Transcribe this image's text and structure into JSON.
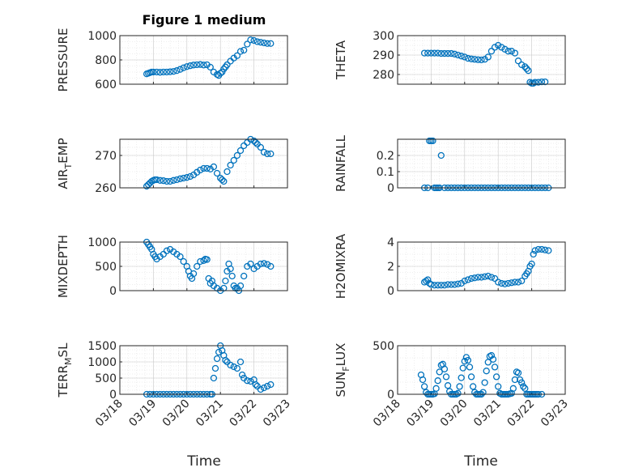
{
  "figure": {
    "title": "Figure 1 medium",
    "xlabel": "Time"
  },
  "x_ticks": [
    "03/18",
    "03/19",
    "03/20",
    "03/21",
    "03/22",
    "03/23"
  ],
  "chart_data": [
    {
      "type": "scatter",
      "name": "pressure",
      "ylabel": "PRESSURE",
      "ylabel_sub": "",
      "ylim": [
        600,
        1000
      ],
      "yticks": [
        "600",
        "800",
        "1000"
      ],
      "yticks_values": [
        600,
        800,
        1000
      ],
      "x": [
        0.8,
        0.85,
        0.9,
        0.95,
        1.0,
        1.1,
        1.2,
        1.3,
        1.4,
        1.5,
        1.6,
        1.7,
        1.8,
        1.9,
        2.0,
        2.1,
        2.2,
        2.3,
        2.4,
        2.5,
        2.6,
        2.7,
        2.8,
        2.9,
        2.95,
        3.0,
        3.05,
        3.1,
        3.15,
        3.2,
        3.3,
        3.4,
        3.5,
        3.6,
        3.7,
        3.8,
        3.9,
        4.0,
        4.1,
        4.2,
        4.3,
        4.4,
        4.5
      ],
      "y": [
        685,
        690,
        695,
        700,
        700,
        700,
        698,
        700,
        700,
        702,
        705,
        712,
        722,
        735,
        745,
        752,
        758,
        760,
        762,
        758,
        760,
        740,
        700,
        680,
        672,
        690,
        700,
        725,
        742,
        760,
        790,
        815,
        835,
        870,
        880,
        930,
        965,
        960,
        950,
        945,
        940,
        935,
        935
      ],
      "color": "#0072bd"
    },
    {
      "type": "scatter",
      "name": "theta",
      "ylabel": "THETA",
      "ylabel_sub": "",
      "ylim": [
        275,
        300
      ],
      "yticks": [
        "280",
        "290",
        "300"
      ],
      "yticks_values": [
        280,
        290,
        300
      ],
      "x": [
        0.8,
        0.9,
        1.0,
        1.1,
        1.2,
        1.3,
        1.4,
        1.5,
        1.6,
        1.7,
        1.8,
        1.9,
        2.0,
        2.1,
        2.2,
        2.3,
        2.4,
        2.5,
        2.6,
        2.7,
        2.8,
        2.9,
        3.0,
        3.1,
        3.2,
        3.3,
        3.4,
        3.5,
        3.6,
        3.7,
        3.8,
        3.85,
        3.9,
        3.95,
        4.0,
        4.05,
        4.1,
        4.2,
        4.3,
        4.4
      ],
      "y": [
        291,
        291,
        291,
        291,
        291,
        290.8,
        290.8,
        290.8,
        290.8,
        290.5,
        290,
        289.5,
        289,
        288.3,
        288,
        287.8,
        287.6,
        287.5,
        287.8,
        289,
        292,
        294,
        295,
        294,
        293,
        292,
        292,
        291,
        287,
        285,
        284,
        283,
        282,
        276,
        275.5,
        275.5,
        276,
        276,
        276.2,
        276.2
      ],
      "color": "#0072bd"
    },
    {
      "type": "scatter",
      "name": "air_temp",
      "ylabel": "AIR",
      "ylabel_sub": "T",
      "ylabel_tail": "EMP",
      "ylim": [
        260,
        275
      ],
      "yticks": [
        "260",
        "270"
      ],
      "yticks_values": [
        260,
        270
      ],
      "x": [
        0.8,
        0.85,
        0.9,
        0.95,
        1.0,
        1.05,
        1.1,
        1.2,
        1.3,
        1.4,
        1.5,
        1.6,
        1.7,
        1.8,
        1.9,
        2.0,
        2.1,
        2.2,
        2.3,
        2.4,
        2.5,
        2.6,
        2.7,
        2.8,
        2.9,
        3.0,
        3.05,
        3.1,
        3.2,
        3.3,
        3.4,
        3.5,
        3.6,
        3.7,
        3.8,
        3.9,
        4.0,
        4.05,
        4.1,
        4.2,
        4.3,
        4.4,
        4.5
      ],
      "y": [
        260.5,
        261,
        261.5,
        262,
        262.3,
        262.5,
        262.5,
        262.3,
        262.2,
        262,
        262,
        262.3,
        262.5,
        262.8,
        263,
        263.2,
        263.5,
        264,
        264.8,
        265.5,
        266,
        266,
        265.8,
        266.5,
        264.5,
        263,
        262.5,
        262,
        265,
        267,
        268.5,
        270,
        271.5,
        273,
        274,
        275,
        274.5,
        274,
        273.5,
        272.5,
        271,
        270.5,
        270.5
      ],
      "color": "#0072bd"
    },
    {
      "type": "scatter",
      "name": "rainfall",
      "ylabel": "RAINFALL",
      "ylabel_sub": "",
      "ylim": [
        0,
        0.3
      ],
      "yticks": [
        "0",
        "0.1",
        "0.2"
      ],
      "yticks_values": [
        0,
        0.1,
        0.2
      ],
      "x": [
        0.8,
        0.9,
        0.95,
        1.0,
        1.05,
        1.1,
        1.15,
        1.2,
        1.25,
        1.3,
        1.4,
        1.5,
        1.6,
        1.7,
        1.8,
        1.9,
        2.0,
        2.1,
        2.2,
        2.3,
        2.4,
        2.5,
        2.6,
        2.7,
        2.8,
        2.9,
        3.0,
        3.1,
        3.2,
        3.3,
        3.4,
        3.5,
        3.6,
        3.7,
        3.8,
        3.9,
        4.0,
        4.1,
        4.2,
        4.3,
        4.4,
        4.5
      ],
      "y": [
        0,
        0,
        0.29,
        0.29,
        0.29,
        0,
        0,
        0,
        0,
        0.2,
        0,
        0,
        0,
        0,
        0,
        0,
        0,
        0,
        0,
        0,
        0,
        0,
        0,
        0,
        0,
        0,
        0,
        0,
        0,
        0,
        0,
        0,
        0,
        0,
        0,
        0,
        0,
        0,
        0,
        0,
        0,
        0
      ],
      "color": "#0072bd"
    },
    {
      "type": "scatter",
      "name": "mixdepth",
      "ylabel": "MIXDEPTH",
      "ylabel_sub": "",
      "ylim": [
        0,
        1000
      ],
      "yticks": [
        "0",
        "500",
        "1000"
      ],
      "yticks_values": [
        0,
        500,
        1000
      ],
      "x": [
        0.8,
        0.85,
        0.9,
        0.95,
        1.0,
        1.05,
        1.1,
        1.2,
        1.3,
        1.4,
        1.5,
        1.6,
        1.7,
        1.8,
        1.9,
        2.0,
        2.05,
        2.1,
        2.15,
        2.2,
        2.3,
        2.4,
        2.5,
        2.55,
        2.6,
        2.65,
        2.7,
        2.75,
        2.8,
        2.9,
        3.0,
        3.1,
        3.15,
        3.2,
        3.25,
        3.3,
        3.35,
        3.4,
        3.45,
        3.5,
        3.55,
        3.6,
        3.7,
        3.8,
        3.9,
        4.0,
        4.1,
        4.2,
        4.3,
        4.4,
        4.5
      ],
      "y": [
        1000,
        950,
        900,
        850,
        750,
        700,
        650,
        700,
        750,
        820,
        850,
        800,
        750,
        700,
        600,
        500,
        400,
        300,
        250,
        350,
        500,
        600,
        620,
        650,
        640,
        250,
        150,
        200,
        100,
        50,
        0,
        50,
        200,
        400,
        550,
        450,
        300,
        100,
        50,
        50,
        0,
        100,
        300,
        500,
        550,
        450,
        500,
        550,
        560,
        540,
        500
      ],
      "color": "#0072bd"
    },
    {
      "type": "scatter",
      "name": "h2omixra",
      "ylabel": "H2OMIXRA",
      "ylabel_sub": "",
      "ylim": [
        0,
        4
      ],
      "yticks": [
        "0",
        "2",
        "4"
      ],
      "yticks_values": [
        0,
        2,
        4
      ],
      "x": [
        0.8,
        0.85,
        0.9,
        0.95,
        1.0,
        1.1,
        1.2,
        1.3,
        1.4,
        1.5,
        1.6,
        1.7,
        1.8,
        1.9,
        2.0,
        2.1,
        2.2,
        2.3,
        2.4,
        2.5,
        2.6,
        2.7,
        2.8,
        2.9,
        3.0,
        3.1,
        3.2,
        3.3,
        3.4,
        3.5,
        3.6,
        3.7,
        3.8,
        3.85,
        3.9,
        3.95,
        4.0,
        4.05,
        4.1,
        4.2,
        4.3,
        4.4,
        4.5
      ],
      "y": [
        0.7,
        0.8,
        0.9,
        0.6,
        0.5,
        0.45,
        0.45,
        0.45,
        0.45,
        0.5,
        0.5,
        0.5,
        0.55,
        0.6,
        0.8,
        0.9,
        1.0,
        1.05,
        1.1,
        1.1,
        1.15,
        1.2,
        1.1,
        1.0,
        0.7,
        0.6,
        0.55,
        0.6,
        0.65,
        0.7,
        0.7,
        0.8,
        1.2,
        1.4,
        1.6,
        2.0,
        2.2,
        3.0,
        3.3,
        3.4,
        3.4,
        3.35,
        3.3
      ],
      "color": "#0072bd"
    },
    {
      "type": "scatter",
      "name": "terr_msl",
      "ylabel": "TERR",
      "ylabel_sub": "M",
      "ylabel_tail": "SL",
      "ylim": [
        0,
        1500
      ],
      "yticks": [
        "0",
        "500",
        "1000",
        "1500"
      ],
      "yticks_values": [
        0,
        500,
        1000,
        1500
      ],
      "x": [
        0.8,
        0.9,
        1.0,
        1.1,
        1.2,
        1.3,
        1.4,
        1.5,
        1.6,
        1.7,
        1.8,
        1.9,
        2.0,
        2.1,
        2.2,
        2.3,
        2.4,
        2.5,
        2.6,
        2.7,
        2.75,
        2.8,
        2.85,
        2.9,
        2.95,
        3.0,
        3.05,
        3.1,
        3.15,
        3.2,
        3.3,
        3.4,
        3.5,
        3.6,
        3.65,
        3.7,
        3.8,
        3.9,
        4.0,
        4.05,
        4.1,
        4.2,
        4.3,
        4.4,
        4.5
      ],
      "y": [
        0,
        0,
        0,
        0,
        0,
        0,
        0,
        0,
        0,
        0,
        0,
        0,
        0,
        0,
        0,
        0,
        0,
        0,
        0,
        0,
        0,
        500,
        800,
        1100,
        1300,
        1500,
        1350,
        1200,
        1050,
        1000,
        900,
        850,
        800,
        1000,
        600,
        500,
        420,
        400,
        450,
        300,
        250,
        150,
        200,
        250,
        300
      ],
      "color": "#0072bd"
    },
    {
      "type": "scatter",
      "name": "sun_flux",
      "ylabel": "SUN",
      "ylabel_sub": "F",
      "ylabel_tail": "LUX",
      "ylim": [
        0,
        500
      ],
      "yticks": [
        "0",
        "500"
      ],
      "yticks_values": [
        0,
        500
      ],
      "x": [
        0.7,
        0.75,
        0.8,
        0.85,
        0.9,
        0.95,
        1.0,
        1.05,
        1.1,
        1.15,
        1.2,
        1.25,
        1.3,
        1.35,
        1.4,
        1.45,
        1.5,
        1.55,
        1.6,
        1.65,
        1.7,
        1.75,
        1.8,
        1.85,
        1.9,
        1.95,
        2.0,
        2.05,
        2.1,
        2.15,
        2.2,
        2.25,
        2.3,
        2.35,
        2.4,
        2.45,
        2.5,
        2.55,
        2.6,
        2.65,
        2.7,
        2.75,
        2.8,
        2.85,
        2.9,
        2.95,
        3.0,
        3.05,
        3.1,
        3.15,
        3.2,
        3.25,
        3.3,
        3.35,
        3.4,
        3.45,
        3.5,
        3.55,
        3.6,
        3.65,
        3.7,
        3.75,
        3.8,
        3.85,
        3.9,
        3.95,
        4.0,
        4.05,
        4.1,
        4.15,
        4.2,
        4.3
      ],
      "y": [
        200,
        150,
        80,
        20,
        0,
        0,
        0,
        0,
        5,
        60,
        140,
        230,
        300,
        310,
        260,
        180,
        90,
        30,
        0,
        0,
        0,
        0,
        10,
        80,
        170,
        270,
        340,
        380,
        350,
        280,
        180,
        80,
        20,
        0,
        0,
        0,
        0,
        20,
        120,
        240,
        330,
        390,
        400,
        360,
        280,
        180,
        80,
        10,
        0,
        0,
        0,
        0,
        0,
        5,
        10,
        60,
        150,
        230,
        220,
        150,
        120,
        80,
        60,
        0,
        0,
        0,
        0,
        0,
        0,
        0,
        0,
        0
      ],
      "color": "#0072bd"
    }
  ]
}
